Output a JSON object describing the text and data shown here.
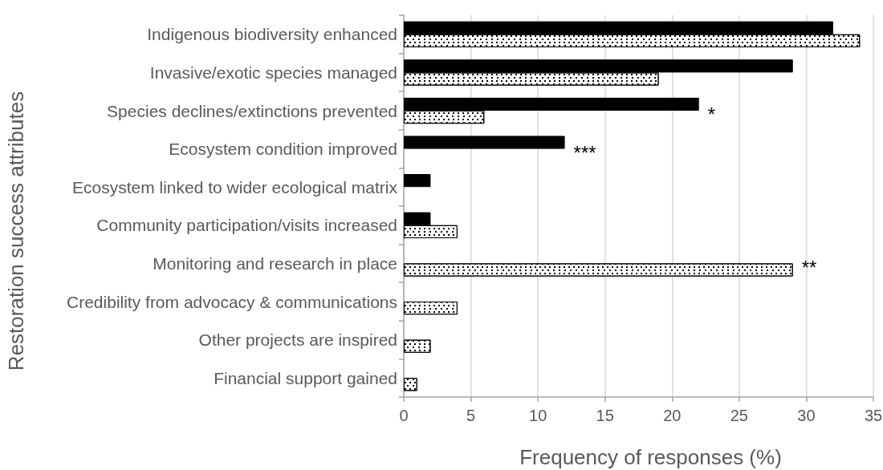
{
  "chart_data": {
    "type": "bar",
    "orientation": "horizontal",
    "xlabel": "Frequency of responses (%)",
    "ylabel": "Restoration success attributes",
    "categories": [
      "Indigenous biodiversity enhanced",
      "Invasive/exotic species managed",
      "Species declines/extinctions prevented",
      "Ecosystem condition improved",
      "Ecosystem linked to wider ecological matrix",
      "Community participation/visits increased",
      "Monitoring and research in place",
      "Credibility from advocacy & communications",
      "Other projects are inspired",
      "Financial support gained"
    ],
    "series": [
      {
        "color": "#000000",
        "values": [
          32,
          29,
          22,
          12,
          2,
          2,
          null,
          null,
          null,
          null
        ]
      },
      {
        "color": "#ffffff",
        "values": [
          34,
          19,
          6,
          null,
          null,
          4,
          29,
          4,
          2,
          1
        ]
      }
    ],
    "xlim": [
      0,
      35
    ],
    "xticks": [
      0,
      5,
      10,
      15,
      20,
      25,
      30,
      35
    ],
    "grid": "x",
    "annotations": [
      {
        "text": "*",
        "x": 22,
        "y": "Species declines/extinctions prevented"
      },
      {
        "text": "***",
        "x": 12,
        "y": "Ecosystem condition improved"
      },
      {
        "text": "**",
        "x": 29,
        "y": "Monitoring and research in place"
      }
    ]
  }
}
